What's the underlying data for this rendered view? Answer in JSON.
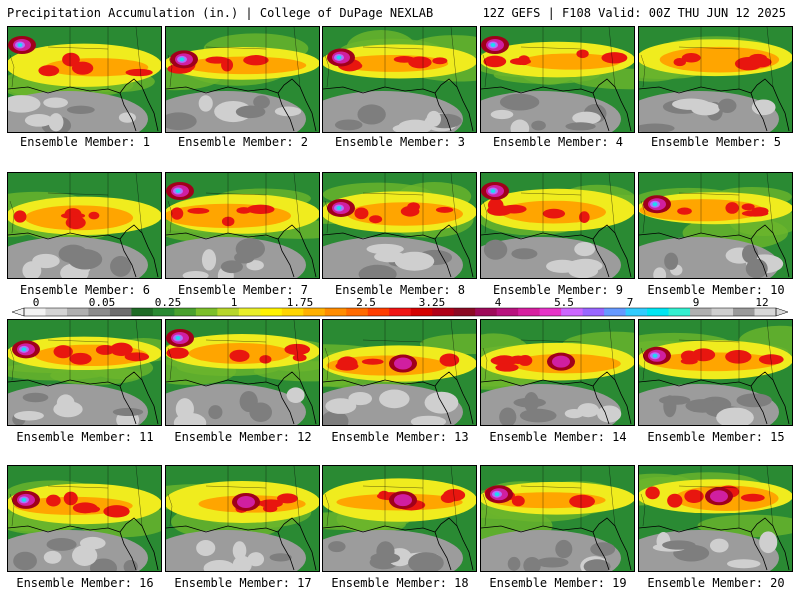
{
  "header": {
    "left_title": "Precipitation Accumulation (in.) | College of DuPage NEXLAB",
    "right_title": "12Z GEFS | F108 Valid: 00Z THU JUN 12 2025"
  },
  "members": [
    {
      "label": "Ensemble Member: 1",
      "heavy": "upper-left"
    },
    {
      "label": "Ensemble Member: 2",
      "heavy": "left"
    },
    {
      "label": "Ensemble Member: 3",
      "heavy": "left"
    },
    {
      "label": "Ensemble Member: 4",
      "heavy": "upper-left"
    },
    {
      "label": "Ensemble Member: 5",
      "heavy": "none"
    },
    {
      "label": "Ensemble Member: 6",
      "heavy": "none"
    },
    {
      "label": "Ensemble Member: 7",
      "heavy": "upper-left"
    },
    {
      "label": "Ensemble Member: 8",
      "heavy": "left"
    },
    {
      "label": "Ensemble Member: 9",
      "heavy": "upper-left"
    },
    {
      "label": "Ensemble Member: 10",
      "heavy": "left"
    },
    {
      "label": "Ensemble Member: 11",
      "heavy": "left"
    },
    {
      "label": "Ensemble Member: 12",
      "heavy": "upper-left"
    },
    {
      "label": "Ensemble Member: 13",
      "heavy": "center"
    },
    {
      "label": "Ensemble Member: 14",
      "heavy": "center"
    },
    {
      "label": "Ensemble Member: 15",
      "heavy": "left"
    },
    {
      "label": "Ensemble Member: 16",
      "heavy": "left"
    },
    {
      "label": "Ensemble Member: 17",
      "heavy": "center"
    },
    {
      "label": "Ensemble Member: 18",
      "heavy": "center"
    },
    {
      "label": "Ensemble Member: 19",
      "heavy": "left"
    },
    {
      "label": "Ensemble Member: 20",
      "heavy": "center"
    }
  ],
  "colorbar": {
    "labels": [
      "0",
      "0.05",
      "0.25",
      "1",
      "1.75",
      "2.5",
      "3.25",
      "4",
      "5.5",
      "7",
      "9",
      "12"
    ],
    "colors": [
      "#f2f2f2",
      "#d4d4d4",
      "#b0b0b0",
      "#8c8c8c",
      "#6e6e6e",
      "#1f6b26",
      "#2a8a33",
      "#4aa12e",
      "#7cbf2a",
      "#b7d62b",
      "#e9ef2a",
      "#fff200",
      "#ffd500",
      "#ffb000",
      "#ff8c00",
      "#ff6a00",
      "#ff3d00",
      "#f01414",
      "#d40000",
      "#b00018",
      "#8b0a24",
      "#9e0a5a",
      "#b8127f",
      "#d61fa0",
      "#e633c8",
      "#cc66ff",
      "#9966ff",
      "#6699ff",
      "#33ccff",
      "#00e5f2",
      "#33f0d0",
      "#b0b0b0",
      "#cfcfcf",
      "#9a9a9a",
      "#d8d8d8"
    ]
  },
  "palette": {
    "green_dark": "#1f6b26",
    "green": "#2a8a33",
    "green_light": "#6cb52c",
    "yellow": "#f0ec1e",
    "orange": "#ffa500",
    "red": "#e8160f",
    "dark_red": "#a0001a",
    "magenta": "#d01fa0",
    "purple": "#b070ff",
    "cyan": "#20d8f0",
    "gray": "#9c9c9c",
    "gray_light": "#cfcfcf"
  }
}
